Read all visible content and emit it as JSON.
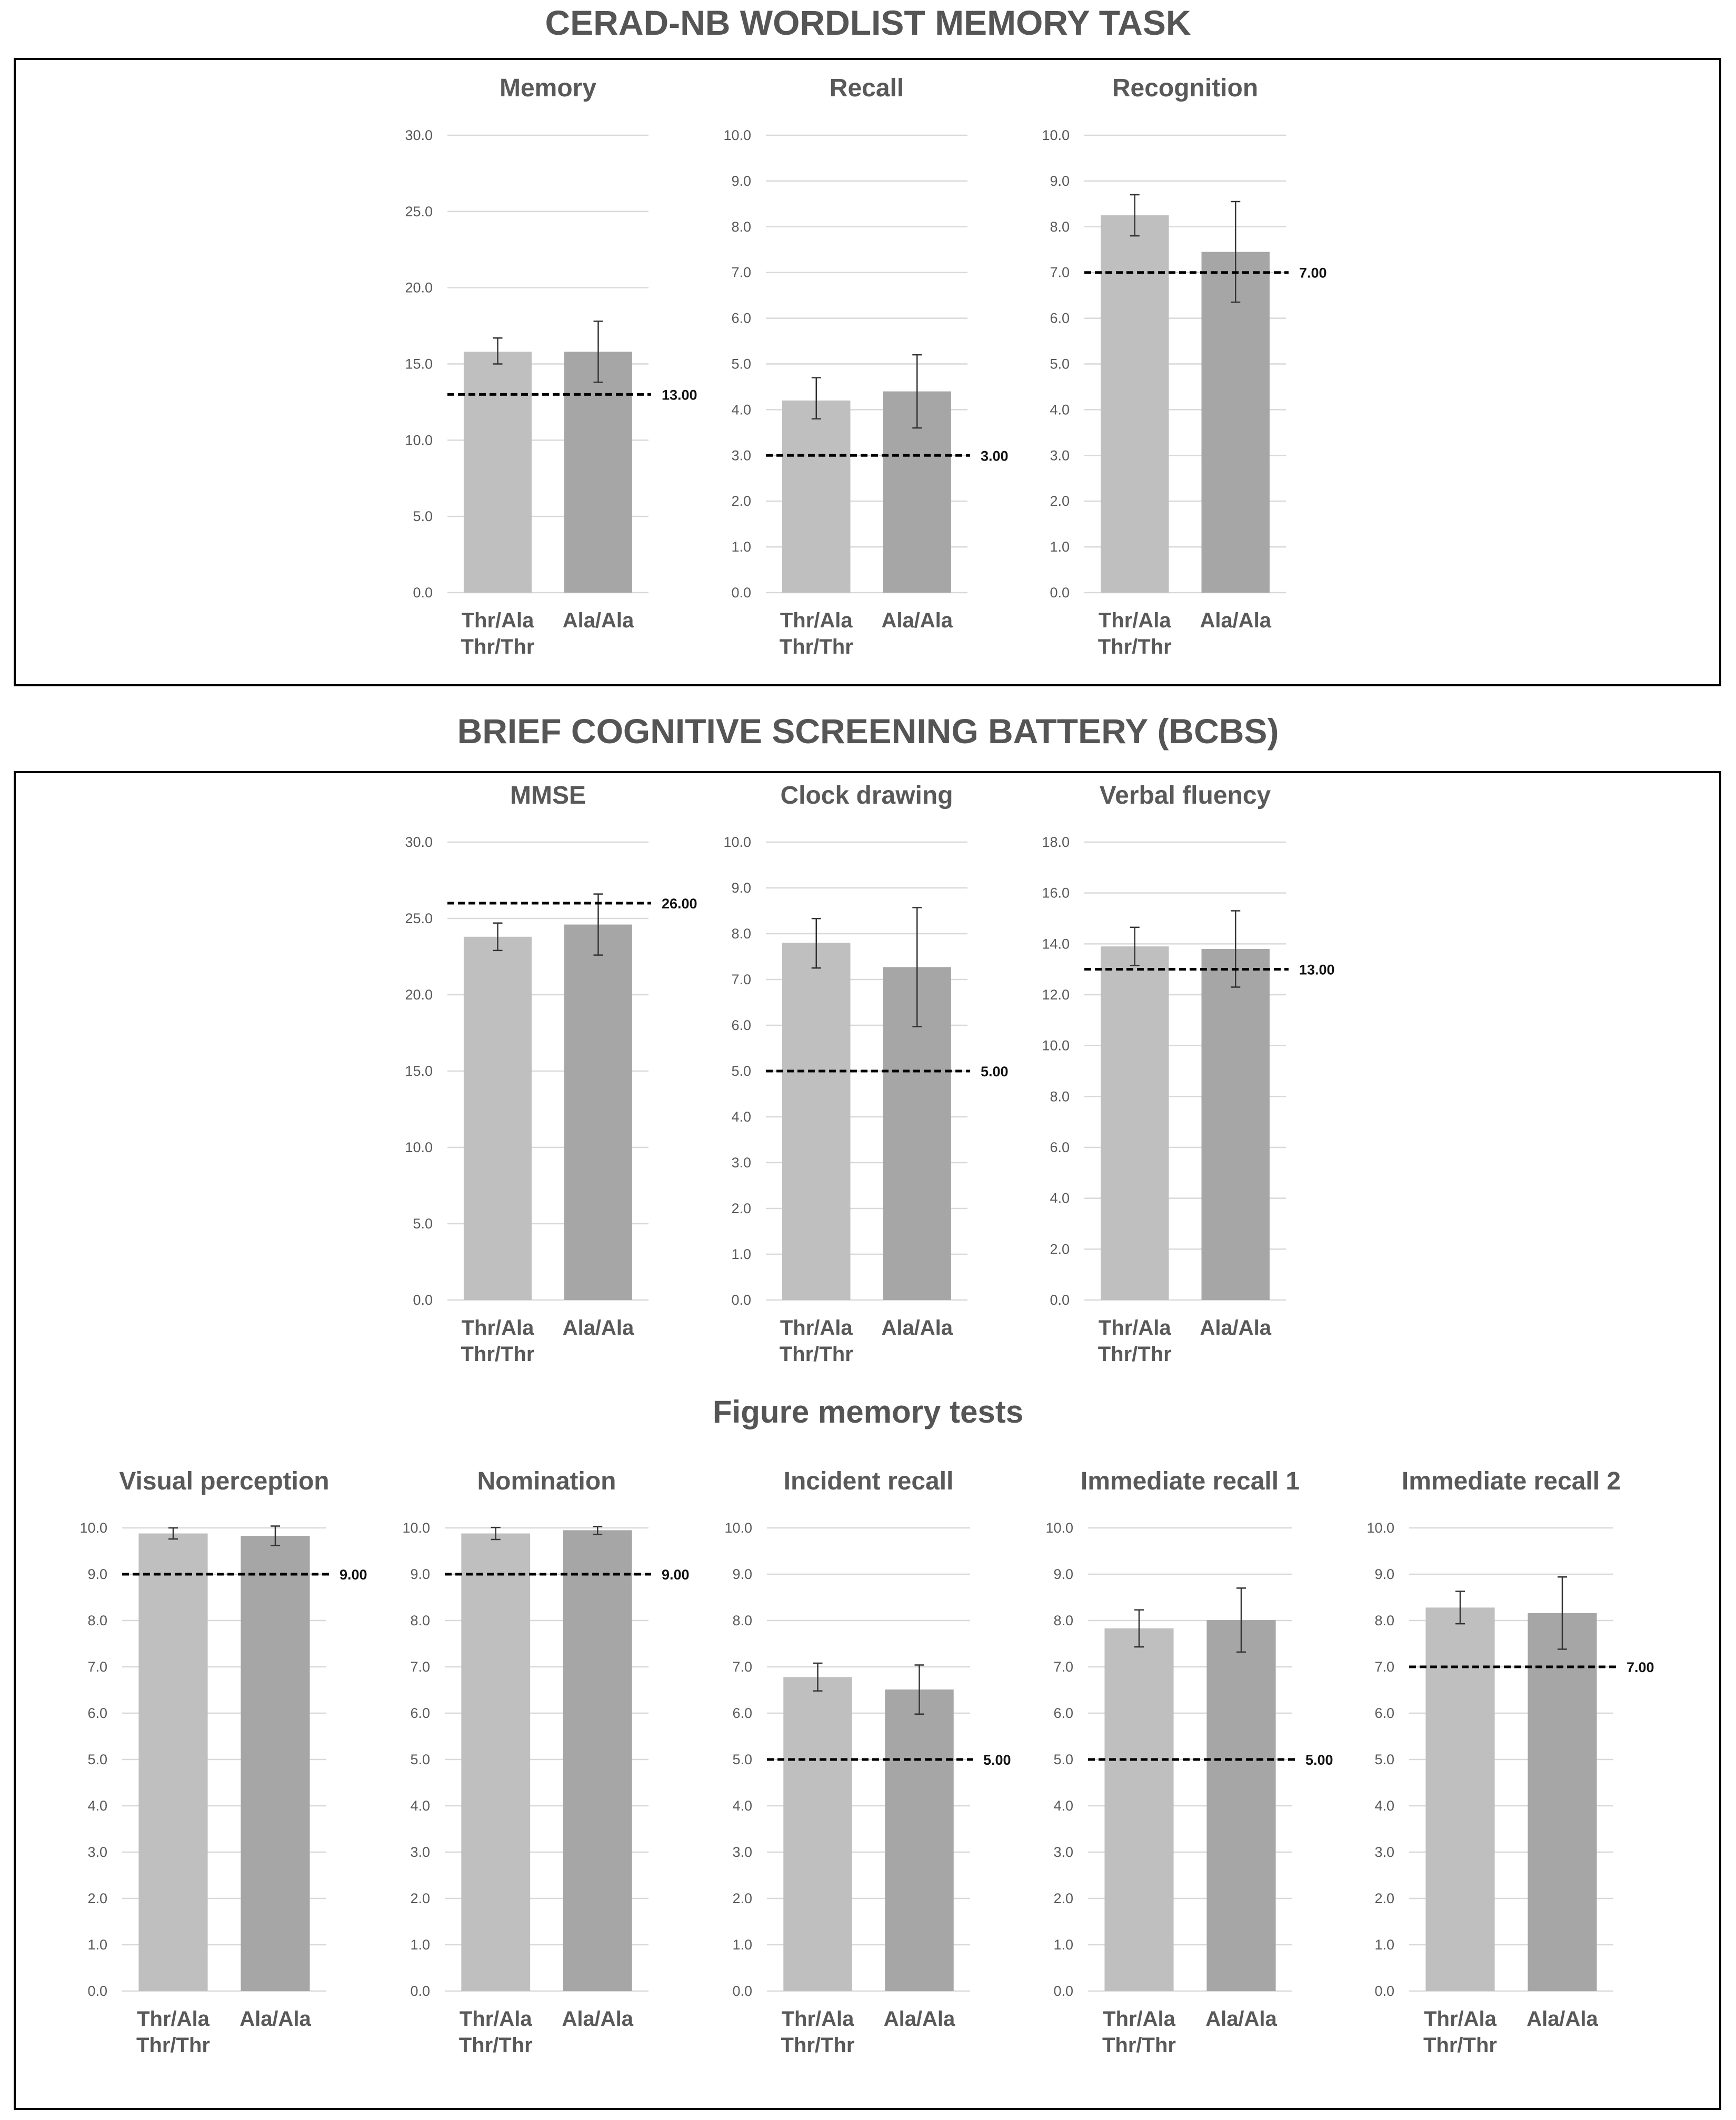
{
  "sections": {
    "cerad_title": "CERAD-NB WORDLIST MEMORY TASK",
    "bcbs_title": "BRIEF COGNITIVE SCREENING BATTERY (BCBS)",
    "figure_memory_title": "Figure memory tests"
  },
  "colors": {
    "bar1": "#bfbfbf",
    "bar2": "#a6a6a6",
    "grid": "#d9d9d9",
    "frame": "#000000",
    "threshold": "#000000"
  },
  "chart_data": [
    {
      "id": "memory",
      "type": "bar",
      "title": "Memory",
      "categories": [
        [
          "Thr/Ala",
          "Thr/Thr"
        ],
        [
          "Ala/Ala"
        ]
      ],
      "values": [
        15.8,
        15.8
      ],
      "error": [
        [
          15.0,
          16.7
        ],
        [
          13.8,
          17.8
        ]
      ],
      "ylim": [
        0,
        30
      ],
      "step": 5,
      "ticks": [
        "0.0",
        "5.0",
        "10.0",
        "15.0",
        "20.0",
        "25.0",
        "30.0"
      ],
      "threshold": 13,
      "threshold_label": "13.00"
    },
    {
      "id": "recall",
      "type": "bar",
      "title": "Recall",
      "categories": [
        [
          "Thr/Ala",
          "Thr/Thr"
        ],
        [
          "Ala/Ala"
        ]
      ],
      "values": [
        4.2,
        4.4
      ],
      "error": [
        [
          3.8,
          4.7
        ],
        [
          3.6,
          5.2
        ]
      ],
      "ylim": [
        0,
        10
      ],
      "step": 1,
      "ticks": [
        "0.0",
        "1.0",
        "2.0",
        "3.0",
        "4.0",
        "5.0",
        "6.0",
        "7.0",
        "8.0",
        "9.0",
        "10.0"
      ],
      "threshold": 3,
      "threshold_label": "3.00"
    },
    {
      "id": "recognition",
      "type": "bar",
      "title": "Recognition",
      "categories": [
        [
          "Thr/Ala",
          "Thr/Thr"
        ],
        [
          "Ala/Ala"
        ]
      ],
      "values": [
        8.25,
        7.45
      ],
      "error": [
        [
          7.8,
          8.7
        ],
        [
          6.35,
          8.55
        ]
      ],
      "ylim": [
        0,
        10
      ],
      "step": 1,
      "ticks": [
        "0.0",
        "1.0",
        "2.0",
        "3.0",
        "4.0",
        "5.0",
        "6.0",
        "7.0",
        "8.0",
        "9.0",
        "10.0"
      ],
      "threshold": 7,
      "threshold_label": "7.00"
    },
    {
      "id": "mmse",
      "type": "bar",
      "title": "MMSE",
      "categories": [
        [
          "Thr/Ala",
          "Thr/Thr"
        ],
        [
          "Ala/Ala"
        ]
      ],
      "values": [
        23.8,
        24.6
      ],
      "error": [
        [
          22.9,
          24.7
        ],
        [
          22.6,
          26.6
        ]
      ],
      "ylim": [
        0,
        30
      ],
      "step": 5,
      "ticks": [
        "0.0",
        "5.0",
        "10.0",
        "15.0",
        "20.0",
        "25.0",
        "30.0"
      ],
      "threshold": 26,
      "threshold_label": "26.00"
    },
    {
      "id": "clock",
      "type": "bar",
      "title": "Clock drawing",
      "categories": [
        [
          "Thr/Ala",
          "Thr/Thr"
        ],
        [
          "Ala/Ala"
        ]
      ],
      "values": [
        7.8,
        7.27
      ],
      "error": [
        [
          7.25,
          8.33
        ],
        [
          5.97,
          8.57
        ]
      ],
      "ylim": [
        0,
        10
      ],
      "step": 1,
      "ticks": [
        "0.0",
        "1.0",
        "2.0",
        "3.0",
        "4.0",
        "5.0",
        "6.0",
        "7.0",
        "8.0",
        "9.0",
        "10.0"
      ],
      "threshold": 5,
      "threshold_label": "5.00"
    },
    {
      "id": "verbal",
      "type": "bar",
      "title": "Verbal fluency",
      "categories": [
        [
          "Thr/Ala",
          "Thr/Thr"
        ],
        [
          "Ala/Ala"
        ]
      ],
      "values": [
        13.9,
        13.8
      ],
      "error": [
        [
          13.15,
          14.65
        ],
        [
          12.3,
          15.3
        ]
      ],
      "ylim": [
        0,
        18
      ],
      "step": 2,
      "ticks": [
        "0.0",
        "2.0",
        "4.0",
        "6.0",
        "8.0",
        "10.0",
        "12.0",
        "14.0",
        "16.0",
        "18.0"
      ],
      "threshold": 13,
      "threshold_label": "13.00"
    },
    {
      "id": "visual",
      "type": "bar",
      "title": "Visual perception",
      "categories": [
        [
          "Thr/Ala",
          "Thr/Thr"
        ],
        [
          "Ala/Ala"
        ]
      ],
      "values": [
        9.88,
        9.83
      ],
      "error": [
        [
          9.76,
          10.0
        ],
        [
          9.62,
          10.04
        ]
      ],
      "ylim": [
        0,
        10
      ],
      "step": 1,
      "ticks": [
        "0.0",
        "1.0",
        "2.0",
        "3.0",
        "4.0",
        "5.0",
        "6.0",
        "7.0",
        "8.0",
        "9.0",
        "10.0"
      ],
      "threshold": 9,
      "threshold_label": "9.00"
    },
    {
      "id": "nomination",
      "type": "bar",
      "title": "Nomination",
      "categories": [
        [
          "Thr/Ala",
          "Thr/Thr"
        ],
        [
          "Ala/Ala"
        ]
      ],
      "values": [
        9.88,
        9.95
      ],
      "error": [
        [
          9.75,
          10.01
        ],
        [
          9.86,
          10.03
        ]
      ],
      "ylim": [
        0,
        10
      ],
      "step": 1,
      "ticks": [
        "0.0",
        "1.0",
        "2.0",
        "3.0",
        "4.0",
        "5.0",
        "6.0",
        "7.0",
        "8.0",
        "9.0",
        "10.0"
      ],
      "threshold": 9,
      "threshold_label": "9.00"
    },
    {
      "id": "incident",
      "type": "bar",
      "title": "Incident recall",
      "categories": [
        [
          "Thr/Ala",
          "Thr/Thr"
        ],
        [
          "Ala/Ala"
        ]
      ],
      "values": [
        6.78,
        6.51
      ],
      "error": [
        [
          6.48,
          7.08
        ],
        [
          5.98,
          7.04
        ]
      ],
      "ylim": [
        0,
        10
      ],
      "step": 1,
      "ticks": [
        "0.0",
        "1.0",
        "2.0",
        "3.0",
        "4.0",
        "5.0",
        "6.0",
        "7.0",
        "8.0",
        "9.0",
        "10.0"
      ],
      "threshold": 5,
      "threshold_label": "5.00"
    },
    {
      "id": "immediate1",
      "type": "bar",
      "title": "Immediate recall 1",
      "categories": [
        [
          "Thr/Ala",
          "Thr/Thr"
        ],
        [
          "Ala/Ala"
        ]
      ],
      "values": [
        7.83,
        8.01
      ],
      "error": [
        [
          7.43,
          8.23
        ],
        [
          7.32,
          8.7
        ]
      ],
      "ylim": [
        0,
        10
      ],
      "step": 1,
      "ticks": [
        "0.0",
        "1.0",
        "2.0",
        "3.0",
        "4.0",
        "5.0",
        "6.0",
        "7.0",
        "8.0",
        "9.0",
        "10.0"
      ],
      "threshold": 5,
      "threshold_label": "5.00"
    },
    {
      "id": "immediate2",
      "type": "bar",
      "title": "Immediate recall 2",
      "categories": [
        [
          "Thr/Ala",
          "Thr/Thr"
        ],
        [
          "Ala/Ala"
        ]
      ],
      "values": [
        8.28,
        8.16
      ],
      "error": [
        [
          7.93,
          8.63
        ],
        [
          7.38,
          8.94
        ]
      ],
      "ylim": [
        0,
        10
      ],
      "step": 1,
      "ticks": [
        "0.0",
        "1.0",
        "2.0",
        "3.0",
        "4.0",
        "5.0",
        "6.0",
        "7.0",
        "8.0",
        "9.0",
        "10.0"
      ],
      "threshold": 7,
      "threshold_label": "7.00"
    }
  ]
}
